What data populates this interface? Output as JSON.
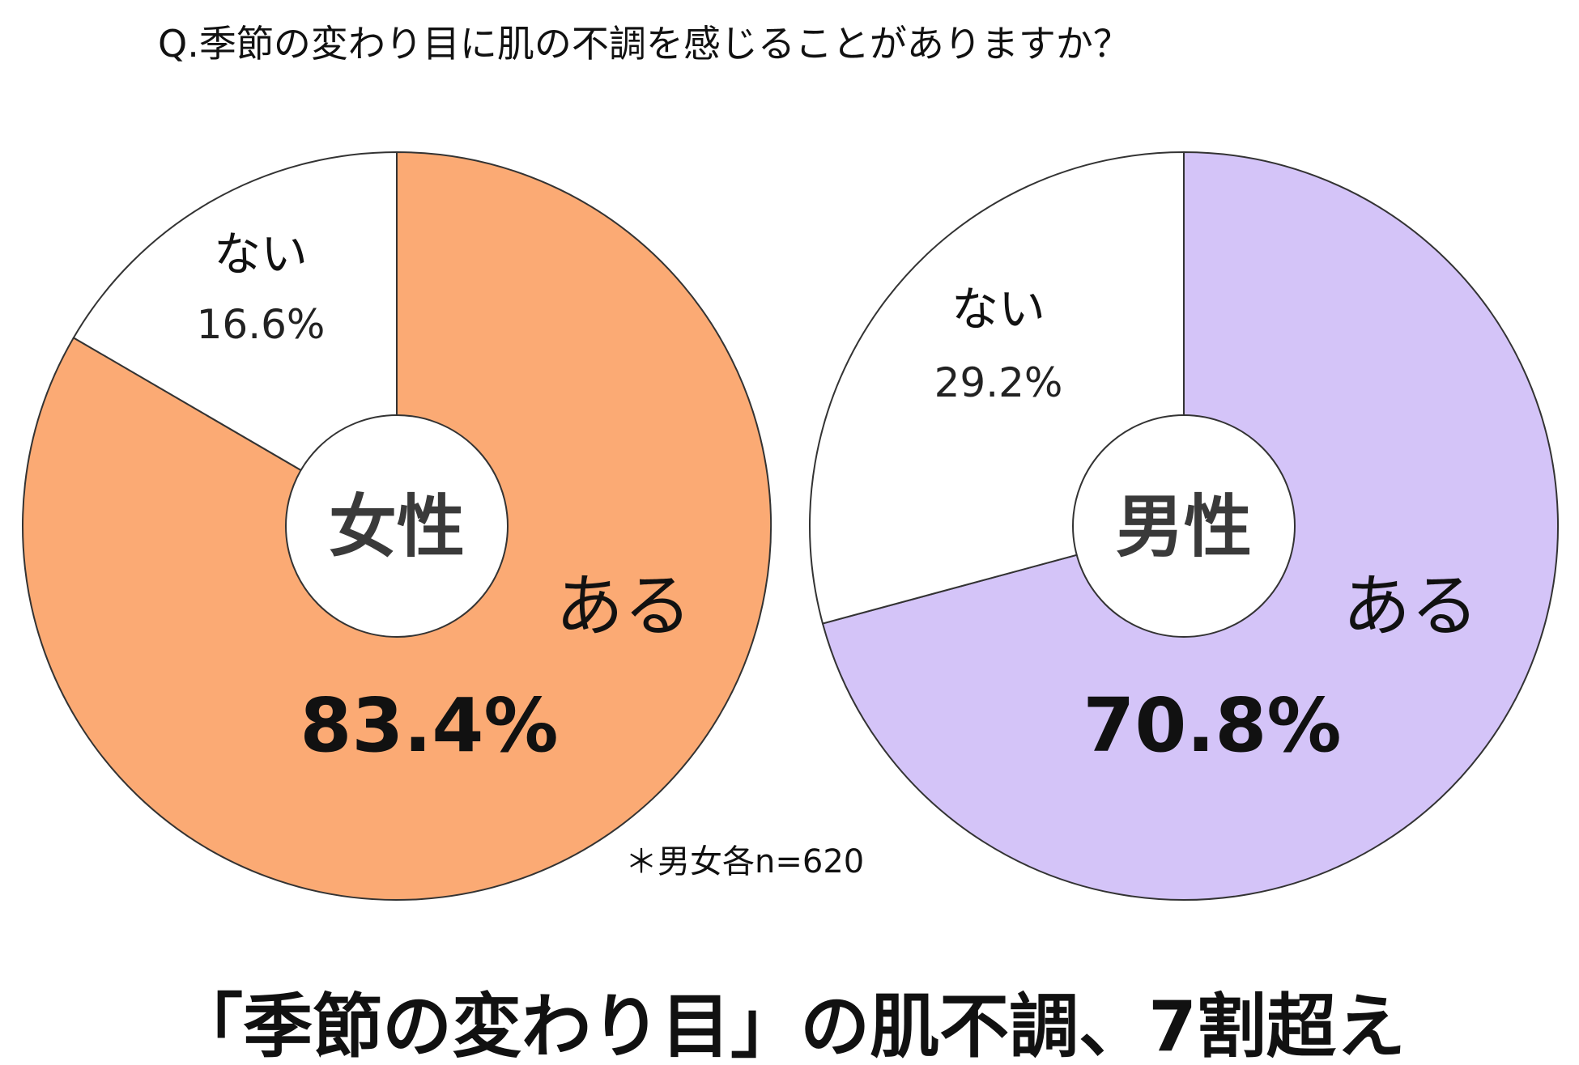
{
  "question": "Q.季節の変わり目に肌の不調を感じることがありますか？",
  "headline": "「季節の変わり目」の肌不調、7割超え",
  "note": "＊男女各n=620",
  "chart_data": [
    {
      "type": "pie",
      "center_label": "女性",
      "slices": [
        {
          "label": "ある",
          "value": 83.4,
          "value_label": "83.4%",
          "color": "#FBAA74"
        },
        {
          "label": "ない",
          "value": 16.6,
          "value_label": "16.6%",
          "color": "#FFFFFF"
        }
      ]
    },
    {
      "type": "pie",
      "center_label": "男性",
      "slices": [
        {
          "label": "ある",
          "value": 70.8,
          "value_label": "70.8%",
          "color": "#D4C4F8"
        },
        {
          "label": "ない",
          "value": 29.2,
          "value_label": "29.2%",
          "color": "#FFFFFF"
        }
      ]
    }
  ]
}
